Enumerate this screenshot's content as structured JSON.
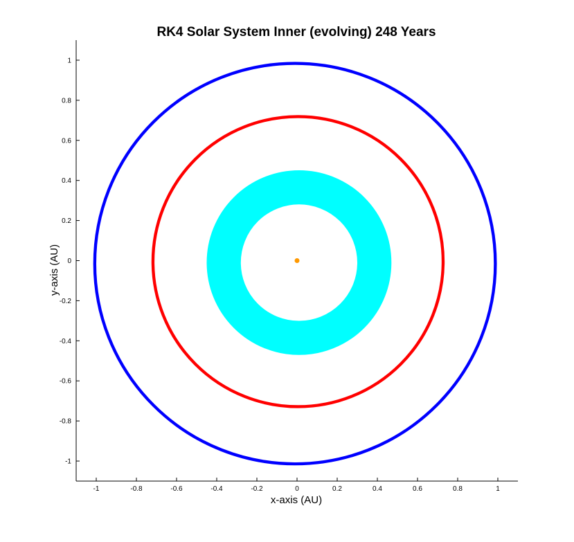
{
  "chart_data": {
    "type": "scatter",
    "title": "RK4 Solar System Inner (evolving) 248 Years",
    "xlabel": "x-axis (AU)",
    "ylabel": "y-axis (AU)",
    "xlim": [
      -1.1,
      1.1
    ],
    "ylim": [
      -1.1,
      1.1
    ],
    "xticks": [
      -1,
      -0.8,
      -0.6,
      -0.4,
      -0.2,
      0,
      0.2,
      0.4,
      0.6,
      0.8,
      1
    ],
    "yticks": [
      -1,
      -0.8,
      -0.6,
      -0.4,
      -0.2,
      0,
      0.2,
      0.4,
      0.6,
      0.8,
      1
    ],
    "xtick_labels": [
      "-1",
      "-0.8",
      "-0.6",
      "-0.4",
      "-0.2",
      "0",
      "0.2",
      "0.4",
      "0.6",
      "0.8",
      "1"
    ],
    "ytick_labels": [
      "-1",
      "-0.8",
      "-0.6",
      "-0.4",
      "-0.2",
      "0",
      "0.2",
      "0.4",
      "0.6",
      "0.8",
      "1"
    ],
    "grid": false,
    "legend": false,
    "series": [
      {
        "color": "#0000ff",
        "shape": "ring",
        "center": [
          -0.01,
          -0.015
        ],
        "radius_range": [
          0.99,
          1.005
        ],
        "approx_points": [
          [
            1.0,
            -0.01
          ],
          [
            0.0,
            0.985
          ],
          [
            -1.0,
            -0.02
          ],
          [
            0.0,
            -1.015
          ]
        ]
      },
      {
        "color": "#ff0000",
        "shape": "ring",
        "center": [
          0.005,
          -0.005
        ],
        "radius_range": [
          0.715,
          0.73
        ],
        "approx_points": [
          [
            0.725,
            0.0
          ],
          [
            0.0,
            0.72
          ],
          [
            -0.72,
            0.0
          ],
          [
            0.0,
            -0.725
          ]
        ]
      },
      {
        "color": "#00ffff",
        "shape": "band",
        "center": [
          0.01,
          -0.01
        ],
        "radius_range": [
          0.29,
          0.46
        ],
        "approx_points": [
          [
            0.46,
            0.0
          ],
          [
            0.28,
            0.0
          ],
          [
            0.0,
            0.45
          ],
          [
            0.0,
            0.3
          ],
          [
            -0.44,
            0.0
          ],
          [
            -0.3,
            0.0
          ],
          [
            0.0,
            -0.46
          ],
          [
            0.0,
            -0.29
          ]
        ]
      },
      {
        "color": "#ff9900",
        "shape": "point",
        "x": [
          0.0
        ],
        "y": [
          0.0
        ]
      }
    ]
  }
}
